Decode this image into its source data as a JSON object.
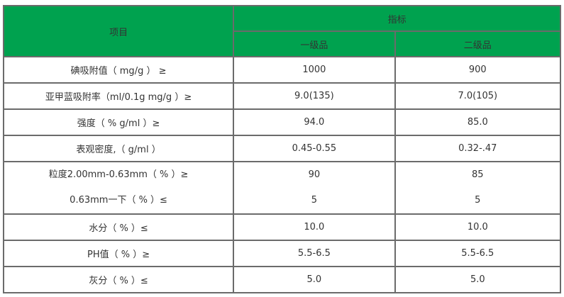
{
  "header": {
    "item_label": "项目",
    "indicator_label": "指标",
    "grade1_label": "一级品",
    "grade2_label": "二级品"
  },
  "rows": [
    {
      "item": "碘吸附值（ mg/g ） ≥",
      "grade1": "1000",
      "grade2": "900"
    },
    {
      "item": "亚甲蓝吸附率（ml/0.1g mg/g ）≥",
      "grade1": "9.0(135)",
      "grade2": "7.0(105)"
    },
    {
      "item": "强度（ % g/ml ）≥",
      "grade1": "94.0",
      "grade2": "85.0"
    },
    {
      "item": "表观密度,（ g/ml ）",
      "grade1": "0.45-0.55",
      "grade2": "0.32-.47"
    },
    {
      "item": "粒度2.00mm-0.63mm（ % ）≥",
      "item2": "0.63mm一下（ % ）≤",
      "grade1": "90",
      "grade1_2": "5",
      "grade2": "85",
      "grade2_2": "5"
    },
    {
      "item": "水分（ % ）≤",
      "grade1": "10.0",
      "grade2": "10.0"
    },
    {
      "item": "PH值（ % ）≥",
      "grade1": "5.5-6.5",
      "grade2": "5.5-6.5"
    },
    {
      "item": "灰分（ % ）≤",
      "grade1": "5.0",
      "grade2": "5.0"
    }
  ],
  "colors": {
    "header_bg": "#00a24f",
    "border": "#6b6b6b",
    "text": "#333333"
  }
}
